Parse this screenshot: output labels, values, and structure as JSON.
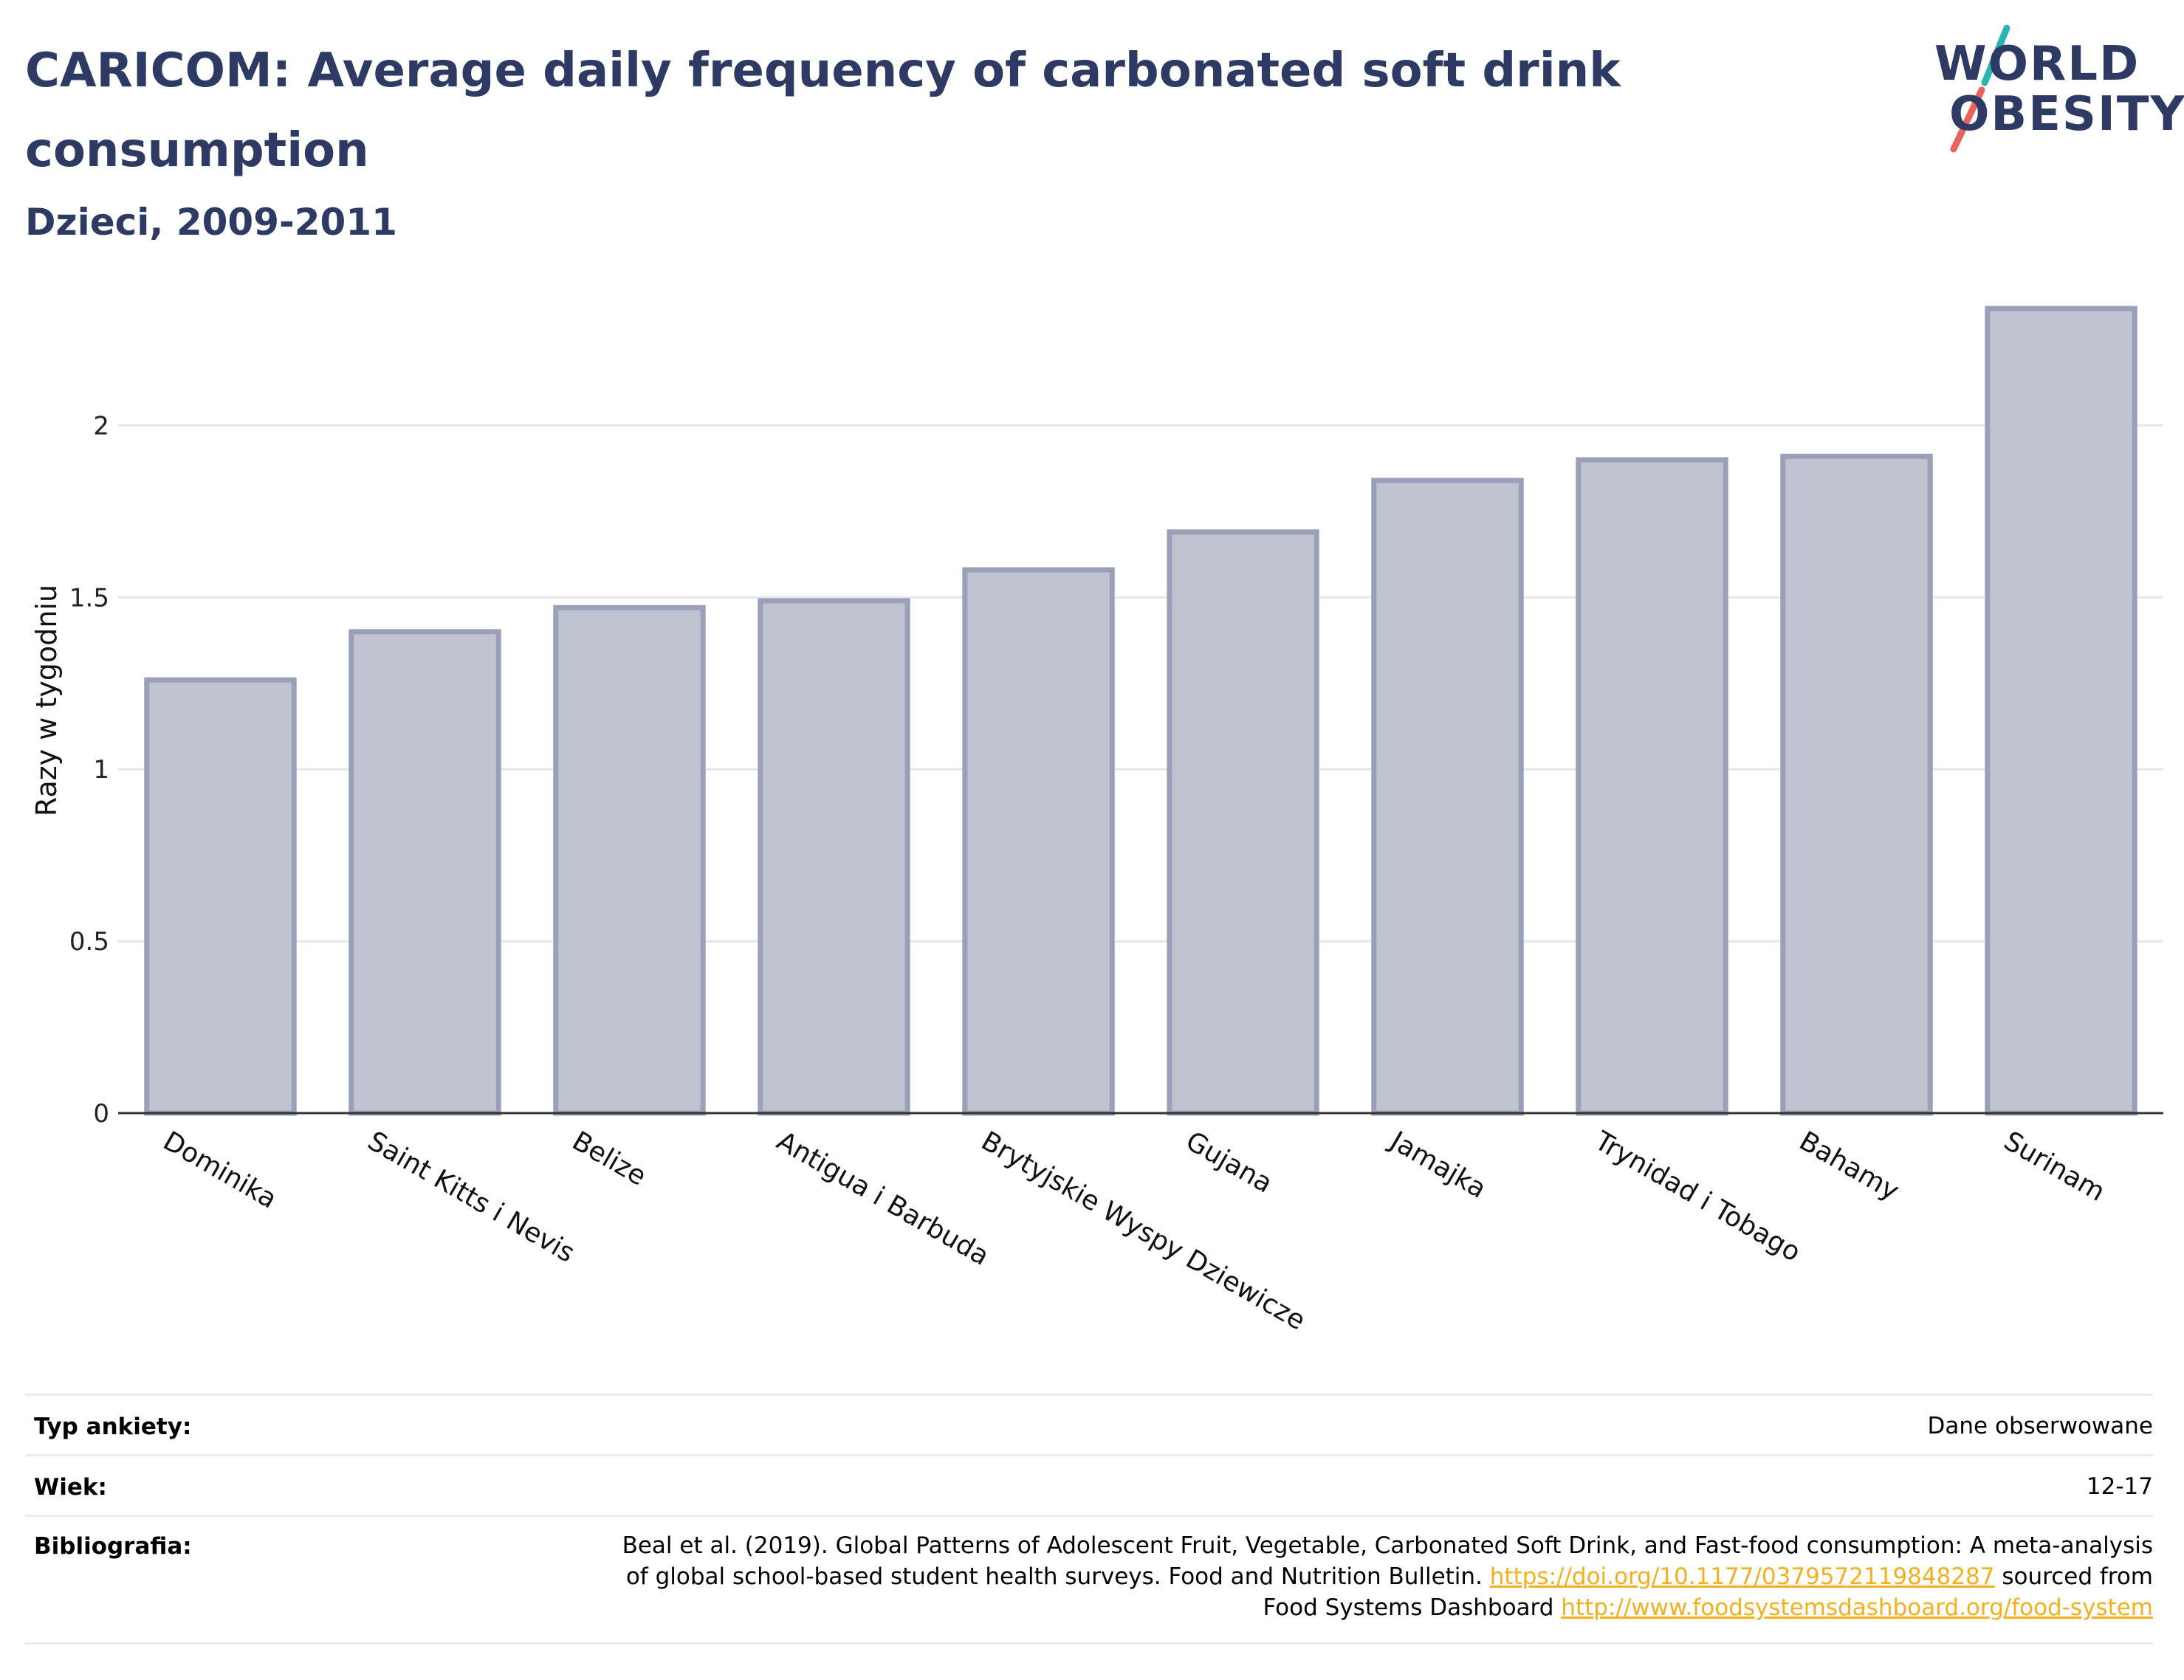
{
  "title": "CARICOM: Average daily frequency of carbonated soft drink consumption",
  "subtitle": "Dzieci, 2009-2011",
  "logo": {
    "line1": "WORLD",
    "line2": "OBESITY",
    "colors": {
      "text": "#2d3a63",
      "slash_top": "#2ab3b1",
      "slash_bottom": "#e8645a"
    }
  },
  "chart_data": {
    "type": "bar",
    "title": "CARICOM: Average daily frequency of carbonated soft drink consumption",
    "subtitle": "Dzieci, 2009-2011",
    "xlabel": "",
    "ylabel": "Razy w tygodniu",
    "categories": [
      "Dominika",
      "Saint Kitts i Nevis",
      "Belize",
      "Antigua i Barbuda",
      "Brytyjskie Wyspy Dziewicze",
      "Gujana",
      "Jamajka",
      "Trynidad i Tobago",
      "Bahamy",
      "Surinam"
    ],
    "values": [
      1.26,
      1.4,
      1.47,
      1.49,
      1.58,
      1.69,
      1.84,
      1.9,
      1.91,
      2.34
    ],
    "yticks": [
      "0",
      "0.5",
      "1",
      "1.5",
      "2"
    ],
    "ylim": [
      0,
      2.4
    ],
    "grid": true,
    "colors": {
      "bar_fill": "#bfc2cf",
      "bar_stroke": "#9aa0b8",
      "grid": "#e5e7ee",
      "axis": "#333333"
    }
  },
  "meta": {
    "survey_type": {
      "label": "Typ ankiety:",
      "value": "Dane obserwowane"
    },
    "age": {
      "label": "Wiek:",
      "value": "12-17"
    },
    "bibliography": {
      "label": "Bibliografia:",
      "line1": "Beal et al. (2019). Global Patterns of Adolescent Fruit, Vegetable, Carbonated Soft Drink, and Fast-food consumption: A meta-analysis",
      "line2_text": "of global school-based student health surveys. Food and Nutrition Bulletin.",
      "line2_link": "https://doi.org/10.1177/0379572119848287",
      "line2_suffix": "sourced from",
      "line3_text": "Food Systems Dashboard",
      "line3_link": "http://www.foodsystemsdashboard.org/food-system"
    }
  }
}
